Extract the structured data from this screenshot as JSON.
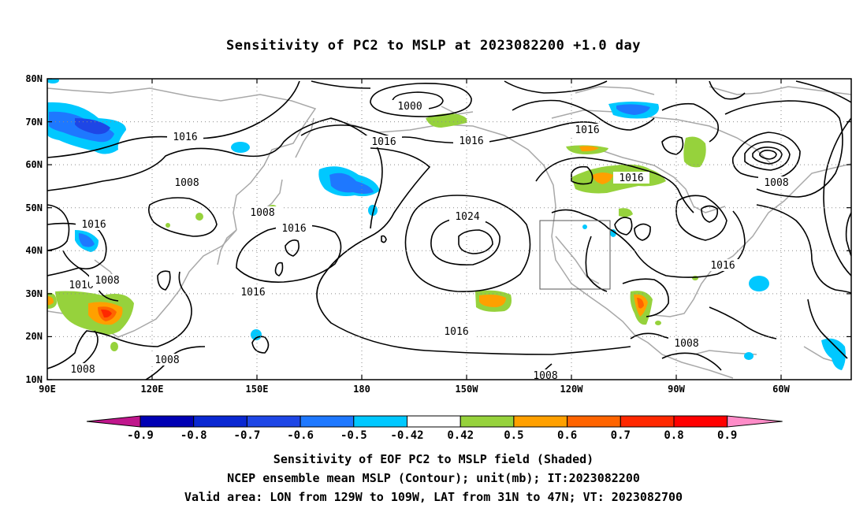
{
  "title": "Sensitivity of PC2 to MSLP at 2023082200 +1.0 day",
  "map": {
    "lat_ticks": [
      "80N",
      "70N",
      "60N",
      "50N",
      "40N",
      "30N",
      "20N",
      "10N"
    ],
    "lon_ticks": [
      "90E",
      "120E",
      "150E",
      "180",
      "150W",
      "120W",
      "90W",
      "60W"
    ],
    "contour_labels": [
      "1000",
      "1016",
      "1016",
      "1016",
      "1016",
      "1008",
      "1016",
      "1008",
      "1016",
      "1024",
      "1016",
      "1016",
      "1016",
      "1008",
      "1016",
      "1016",
      "1008",
      "1008",
      "1008",
      "1008",
      "1016",
      "1008"
    ],
    "valid_box": {
      "lon_w": "129W",
      "lon_e": "109W",
      "lat_s": "31N",
      "lat_n": "47N"
    }
  },
  "colorbar": {
    "labels": [
      "-0.9",
      "-0.8",
      "-0.7",
      "-0.6",
      "-0.5",
      "-0.42",
      "0.42",
      "0.5",
      "0.6",
      "0.7",
      "0.8",
      "0.9"
    ],
    "colors": [
      "#c0168c",
      "#0000b4",
      "#0a28d2",
      "#1e46e6",
      "#1e78ff",
      "#00c8ff",
      "#ffffff",
      "#96d23c",
      "#ffa000",
      "#ff6400",
      "#ff2800",
      "#ff0000",
      "#ff8cc8"
    ]
  },
  "captions": [
    "Sensitivity of EOF PC2 to MSLP field (Shaded)",
    "NCEP ensemble mean MSLP (Contour); unit(mb); IT:2023082200",
    "Valid area: LON from 129W to 109W, LAT from 31N to 47N; VT: 2023082700"
  ]
}
